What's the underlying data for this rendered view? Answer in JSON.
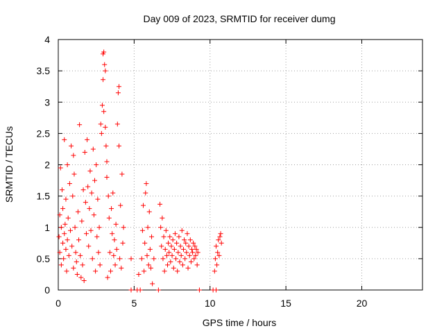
{
  "chart_data": {
    "type": "scatter",
    "title": "Day 009 of 2023, SRMTID for receiver dumg",
    "xlabel": "GPS time / hours",
    "ylabel": "SRMTID / TECUs",
    "xlim": [
      0,
      24
    ],
    "ylim": [
      0,
      4
    ],
    "xticks": [
      0,
      5,
      10,
      15,
      20
    ],
    "yticks": [
      0,
      0.5,
      1,
      1.5,
      2,
      2.5,
      3,
      3.5,
      4
    ],
    "grid": true,
    "marker": "plus",
    "series": [
      {
        "color": "#ff0000",
        "points": [
          [
            0.05,
            0.85
          ],
          [
            0.1,
            1.2
          ],
          [
            0.1,
            0.6
          ],
          [
            0.15,
            1.95
          ],
          [
            0.2,
            1.0
          ],
          [
            0.2,
            0.4
          ],
          [
            0.25,
            1.6
          ],
          [
            0.3,
            0.75
          ],
          [
            0.3,
            1.3
          ],
          [
            0.35,
            0.5
          ],
          [
            0.4,
            2.4
          ],
          [
            0.4,
            0.9
          ],
          [
            0.45,
            1.05
          ],
          [
            0.5,
            0.65
          ],
          [
            0.5,
            1.45
          ],
          [
            0.55,
            0.3
          ],
          [
            0.6,
            2.0
          ],
          [
            0.6,
            0.8
          ],
          [
            0.65,
            1.15
          ],
          [
            0.7,
            0.55
          ],
          [
            0.75,
            1.7
          ],
          [
            0.8,
            0.95
          ],
          [
            0.85,
            2.3
          ],
          [
            0.9,
            0.7
          ],
          [
            0.95,
            1.5
          ],
          [
            1.0,
            2.15
          ],
          [
            1.0,
            0.35
          ],
          [
            1.05,
            1.85
          ],
          [
            1.1,
            1.0
          ],
          [
            1.15,
            0.6
          ],
          [
            1.2,
            0.45
          ],
          [
            1.25,
            0.25
          ],
          [
            1.3,
            1.25
          ],
          [
            1.35,
            0.8
          ],
          [
            1.4,
            2.64
          ],
          [
            1.45,
            0.55
          ],
          [
            1.5,
            0.2
          ],
          [
            1.55,
            1.1
          ],
          [
            1.6,
            0.4
          ],
          [
            1.65,
            1.6
          ],
          [
            1.7,
            0.15
          ],
          [
            1.75,
            2.2
          ],
          [
            1.8,
            1.4
          ],
          [
            1.85,
            0.9
          ],
          [
            1.9,
            2.4
          ],
          [
            1.95,
            1.65
          ],
          [
            2.0,
            0.7
          ],
          [
            2.05,
            1.3
          ],
          [
            2.1,
            1.9
          ],
          [
            2.15,
            0.95
          ],
          [
            2.2,
            1.55
          ],
          [
            2.25,
            0.5
          ],
          [
            2.3,
            2.25
          ],
          [
            2.35,
            1.2
          ],
          [
            2.4,
            1.75
          ],
          [
            2.45,
            0.3
          ],
          [
            2.5,
            2.0
          ],
          [
            2.55,
            0.85
          ],
          [
            2.6,
            1.45
          ],
          [
            2.65,
            0.6
          ],
          [
            2.7,
            1.0
          ],
          [
            2.75,
            0.4
          ],
          [
            2.8,
            2.65
          ],
          [
            2.85,
            2.5
          ],
          [
            2.9,
            2.95
          ],
          [
            2.95,
            3.77
          ],
          [
            2.95,
            3.36
          ],
          [
            3.0,
            3.8
          ],
          [
            3.0,
            2.85
          ],
          [
            3.05,
            3.6
          ],
          [
            3.1,
            3.5
          ],
          [
            3.1,
            2.6
          ],
          [
            3.15,
            2.3
          ],
          [
            3.2,
            2.05
          ],
          [
            3.2,
            1.8
          ],
          [
            3.25,
            0.2
          ],
          [
            3.3,
            1.5
          ],
          [
            3.35,
            1.15
          ],
          [
            3.4,
            0.6
          ],
          [
            3.45,
            0.3
          ],
          [
            3.5,
            1.3
          ],
          [
            3.55,
            0.9
          ],
          [
            3.6,
            1.55
          ],
          [
            3.65,
            0.55
          ],
          [
            3.7,
            0.8
          ],
          [
            3.75,
            0.4
          ],
          [
            3.8,
            1.05
          ],
          [
            3.85,
            0.65
          ],
          [
            3.9,
            2.65
          ],
          [
            3.95,
            3.15
          ],
          [
            4.0,
            3.25
          ],
          [
            4.0,
            2.3
          ],
          [
            4.05,
            0.5
          ],
          [
            4.1,
            1.35
          ],
          [
            4.15,
            0.35
          ],
          [
            4.2,
            1.85
          ],
          [
            4.25,
            0.75
          ],
          [
            4.3,
            1.0
          ],
          [
            4.8,
            0.5
          ],
          [
            4.8,
            0.0
          ],
          [
            5.2,
            0.0
          ],
          [
            5.3,
            0.25
          ],
          [
            5.4,
            0.0
          ],
          [
            5.5,
            0.5
          ],
          [
            5.55,
            0.95
          ],
          [
            5.6,
            1.35
          ],
          [
            5.65,
            0.3
          ],
          [
            5.7,
            0.75
          ],
          [
            5.75,
            1.55
          ],
          [
            5.8,
            1.7
          ],
          [
            5.85,
            0.55
          ],
          [
            5.9,
            1.0
          ],
          [
            5.95,
            0.4
          ],
          [
            6.0,
            1.25
          ],
          [
            6.05,
            0.65
          ],
          [
            6.1,
            0.35
          ],
          [
            6.15,
            0.85
          ],
          [
            6.2,
            0.1
          ],
          [
            6.3,
            0.5
          ],
          [
            6.6,
            0.0
          ],
          [
            6.7,
            1.37
          ],
          [
            6.75,
            1.0
          ],
          [
            6.8,
            0.7
          ],
          [
            6.85,
            1.15
          ],
          [
            6.9,
            0.5
          ],
          [
            6.95,
            0.85
          ],
          [
            7.0,
            0.3
          ],
          [
            7.05,
            0.65
          ],
          [
            7.1,
            0.95
          ],
          [
            7.15,
            0.55
          ],
          [
            7.2,
            0.4
          ],
          [
            7.25,
            0.75
          ],
          [
            7.3,
            0.6
          ],
          [
            7.35,
            0.85
          ],
          [
            7.4,
            0.45
          ],
          [
            7.45,
            0.7
          ],
          [
            7.5,
            0.55
          ],
          [
            7.55,
            0.8
          ],
          [
            7.6,
            0.35
          ],
          [
            7.65,
            0.65
          ],
          [
            7.7,
            0.9
          ],
          [
            7.75,
            0.5
          ],
          [
            7.8,
            0.75
          ],
          [
            7.85,
            0.3
          ],
          [
            7.9,
            0.6
          ],
          [
            7.95,
            0.85
          ],
          [
            8.0,
            0.45
          ],
          [
            8.05,
            0.7
          ],
          [
            8.1,
            0.55
          ],
          [
            8.15,
            0.95
          ],
          [
            8.2,
            0.4
          ],
          [
            8.25,
            0.65
          ],
          [
            8.3,
            0.8
          ],
          [
            8.35,
            0.5
          ],
          [
            8.4,
            0.75
          ],
          [
            8.45,
            0.6
          ],
          [
            8.5,
            0.9
          ],
          [
            8.55,
            0.35
          ],
          [
            8.6,
            0.7
          ],
          [
            8.65,
            0.55
          ],
          [
            8.7,
            0.8
          ],
          [
            8.75,
            0.45
          ],
          [
            8.8,
            0.65
          ],
          [
            8.85,
            0.6
          ],
          [
            8.9,
            0.75
          ],
          [
            8.95,
            0.5
          ],
          [
            9.0,
            0.7
          ],
          [
            9.05,
            0.55
          ],
          [
            9.1,
            0.65
          ],
          [
            9.15,
            0.4
          ],
          [
            9.2,
            0.6
          ],
          [
            9.3,
            0.0
          ],
          [
            10.2,
            0.0
          ],
          [
            10.4,
            0.0
          ],
          [
            10.3,
            0.3
          ],
          [
            10.35,
            0.5
          ],
          [
            10.4,
            0.7
          ],
          [
            10.45,
            0.4
          ],
          [
            10.5,
            0.6
          ],
          [
            10.55,
            0.8
          ],
          [
            10.6,
            0.55
          ],
          [
            10.65,
            0.85
          ],
          [
            10.7,
            0.9
          ],
          [
            10.75,
            0.75
          ]
        ]
      }
    ]
  }
}
